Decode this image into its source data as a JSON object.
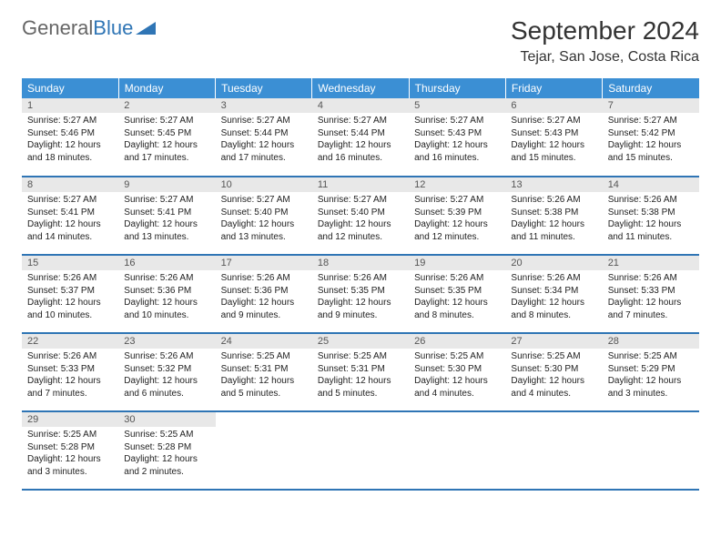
{
  "logo": {
    "text1": "General",
    "text2": "Blue"
  },
  "title": "September 2024",
  "location": "Tejar, San Jose, Costa Rica",
  "colors": {
    "header_bg": "#3b8fd4",
    "header_text": "#ffffff",
    "daynum_bg": "#e8e8e8",
    "row_border": "#2f75b5",
    "logo_gray": "#666666",
    "logo_blue": "#2f75b5"
  },
  "typography": {
    "title_fontsize": 28,
    "location_fontsize": 16,
    "header_fontsize": 12,
    "cell_fontsize": 10
  },
  "layout": {
    "columns": 7,
    "rows": 5,
    "first_day_column": 0
  },
  "weekdays": [
    "Sunday",
    "Monday",
    "Tuesday",
    "Wednesday",
    "Thursday",
    "Friday",
    "Saturday"
  ],
  "days": [
    {
      "d": "1",
      "sunrise": "5:27 AM",
      "sunset": "5:46 PM",
      "daylight": "12 hours and 18 minutes."
    },
    {
      "d": "2",
      "sunrise": "5:27 AM",
      "sunset": "5:45 PM",
      "daylight": "12 hours and 17 minutes."
    },
    {
      "d": "3",
      "sunrise": "5:27 AM",
      "sunset": "5:44 PM",
      "daylight": "12 hours and 17 minutes."
    },
    {
      "d": "4",
      "sunrise": "5:27 AM",
      "sunset": "5:44 PM",
      "daylight": "12 hours and 16 minutes."
    },
    {
      "d": "5",
      "sunrise": "5:27 AM",
      "sunset": "5:43 PM",
      "daylight": "12 hours and 16 minutes."
    },
    {
      "d": "6",
      "sunrise": "5:27 AM",
      "sunset": "5:43 PM",
      "daylight": "12 hours and 15 minutes."
    },
    {
      "d": "7",
      "sunrise": "5:27 AM",
      "sunset": "5:42 PM",
      "daylight": "12 hours and 15 minutes."
    },
    {
      "d": "8",
      "sunrise": "5:27 AM",
      "sunset": "5:41 PM",
      "daylight": "12 hours and 14 minutes."
    },
    {
      "d": "9",
      "sunrise": "5:27 AM",
      "sunset": "5:41 PM",
      "daylight": "12 hours and 13 minutes."
    },
    {
      "d": "10",
      "sunrise": "5:27 AM",
      "sunset": "5:40 PM",
      "daylight": "12 hours and 13 minutes."
    },
    {
      "d": "11",
      "sunrise": "5:27 AM",
      "sunset": "5:40 PM",
      "daylight": "12 hours and 12 minutes."
    },
    {
      "d": "12",
      "sunrise": "5:27 AM",
      "sunset": "5:39 PM",
      "daylight": "12 hours and 12 minutes."
    },
    {
      "d": "13",
      "sunrise": "5:26 AM",
      "sunset": "5:38 PM",
      "daylight": "12 hours and 11 minutes."
    },
    {
      "d": "14",
      "sunrise": "5:26 AM",
      "sunset": "5:38 PM",
      "daylight": "12 hours and 11 minutes."
    },
    {
      "d": "15",
      "sunrise": "5:26 AM",
      "sunset": "5:37 PM",
      "daylight": "12 hours and 10 minutes."
    },
    {
      "d": "16",
      "sunrise": "5:26 AM",
      "sunset": "5:36 PM",
      "daylight": "12 hours and 10 minutes."
    },
    {
      "d": "17",
      "sunrise": "5:26 AM",
      "sunset": "5:36 PM",
      "daylight": "12 hours and 9 minutes."
    },
    {
      "d": "18",
      "sunrise": "5:26 AM",
      "sunset": "5:35 PM",
      "daylight": "12 hours and 9 minutes."
    },
    {
      "d": "19",
      "sunrise": "5:26 AM",
      "sunset": "5:35 PM",
      "daylight": "12 hours and 8 minutes."
    },
    {
      "d": "20",
      "sunrise": "5:26 AM",
      "sunset": "5:34 PM",
      "daylight": "12 hours and 8 minutes."
    },
    {
      "d": "21",
      "sunrise": "5:26 AM",
      "sunset": "5:33 PM",
      "daylight": "12 hours and 7 minutes."
    },
    {
      "d": "22",
      "sunrise": "5:26 AM",
      "sunset": "5:33 PM",
      "daylight": "12 hours and 7 minutes."
    },
    {
      "d": "23",
      "sunrise": "5:26 AM",
      "sunset": "5:32 PM",
      "daylight": "12 hours and 6 minutes."
    },
    {
      "d": "24",
      "sunrise": "5:25 AM",
      "sunset": "5:31 PM",
      "daylight": "12 hours and 5 minutes."
    },
    {
      "d": "25",
      "sunrise": "5:25 AM",
      "sunset": "5:31 PM",
      "daylight": "12 hours and 5 minutes."
    },
    {
      "d": "26",
      "sunrise": "5:25 AM",
      "sunset": "5:30 PM",
      "daylight": "12 hours and 4 minutes."
    },
    {
      "d": "27",
      "sunrise": "5:25 AM",
      "sunset": "5:30 PM",
      "daylight": "12 hours and 4 minutes."
    },
    {
      "d": "28",
      "sunrise": "5:25 AM",
      "sunset": "5:29 PM",
      "daylight": "12 hours and 3 minutes."
    },
    {
      "d": "29",
      "sunrise": "5:25 AM",
      "sunset": "5:28 PM",
      "daylight": "12 hours and 3 minutes."
    },
    {
      "d": "30",
      "sunrise": "5:25 AM",
      "sunset": "5:28 PM",
      "daylight": "12 hours and 2 minutes."
    }
  ],
  "labels": {
    "sunrise": "Sunrise:",
    "sunset": "Sunset:",
    "daylight": "Daylight:"
  }
}
